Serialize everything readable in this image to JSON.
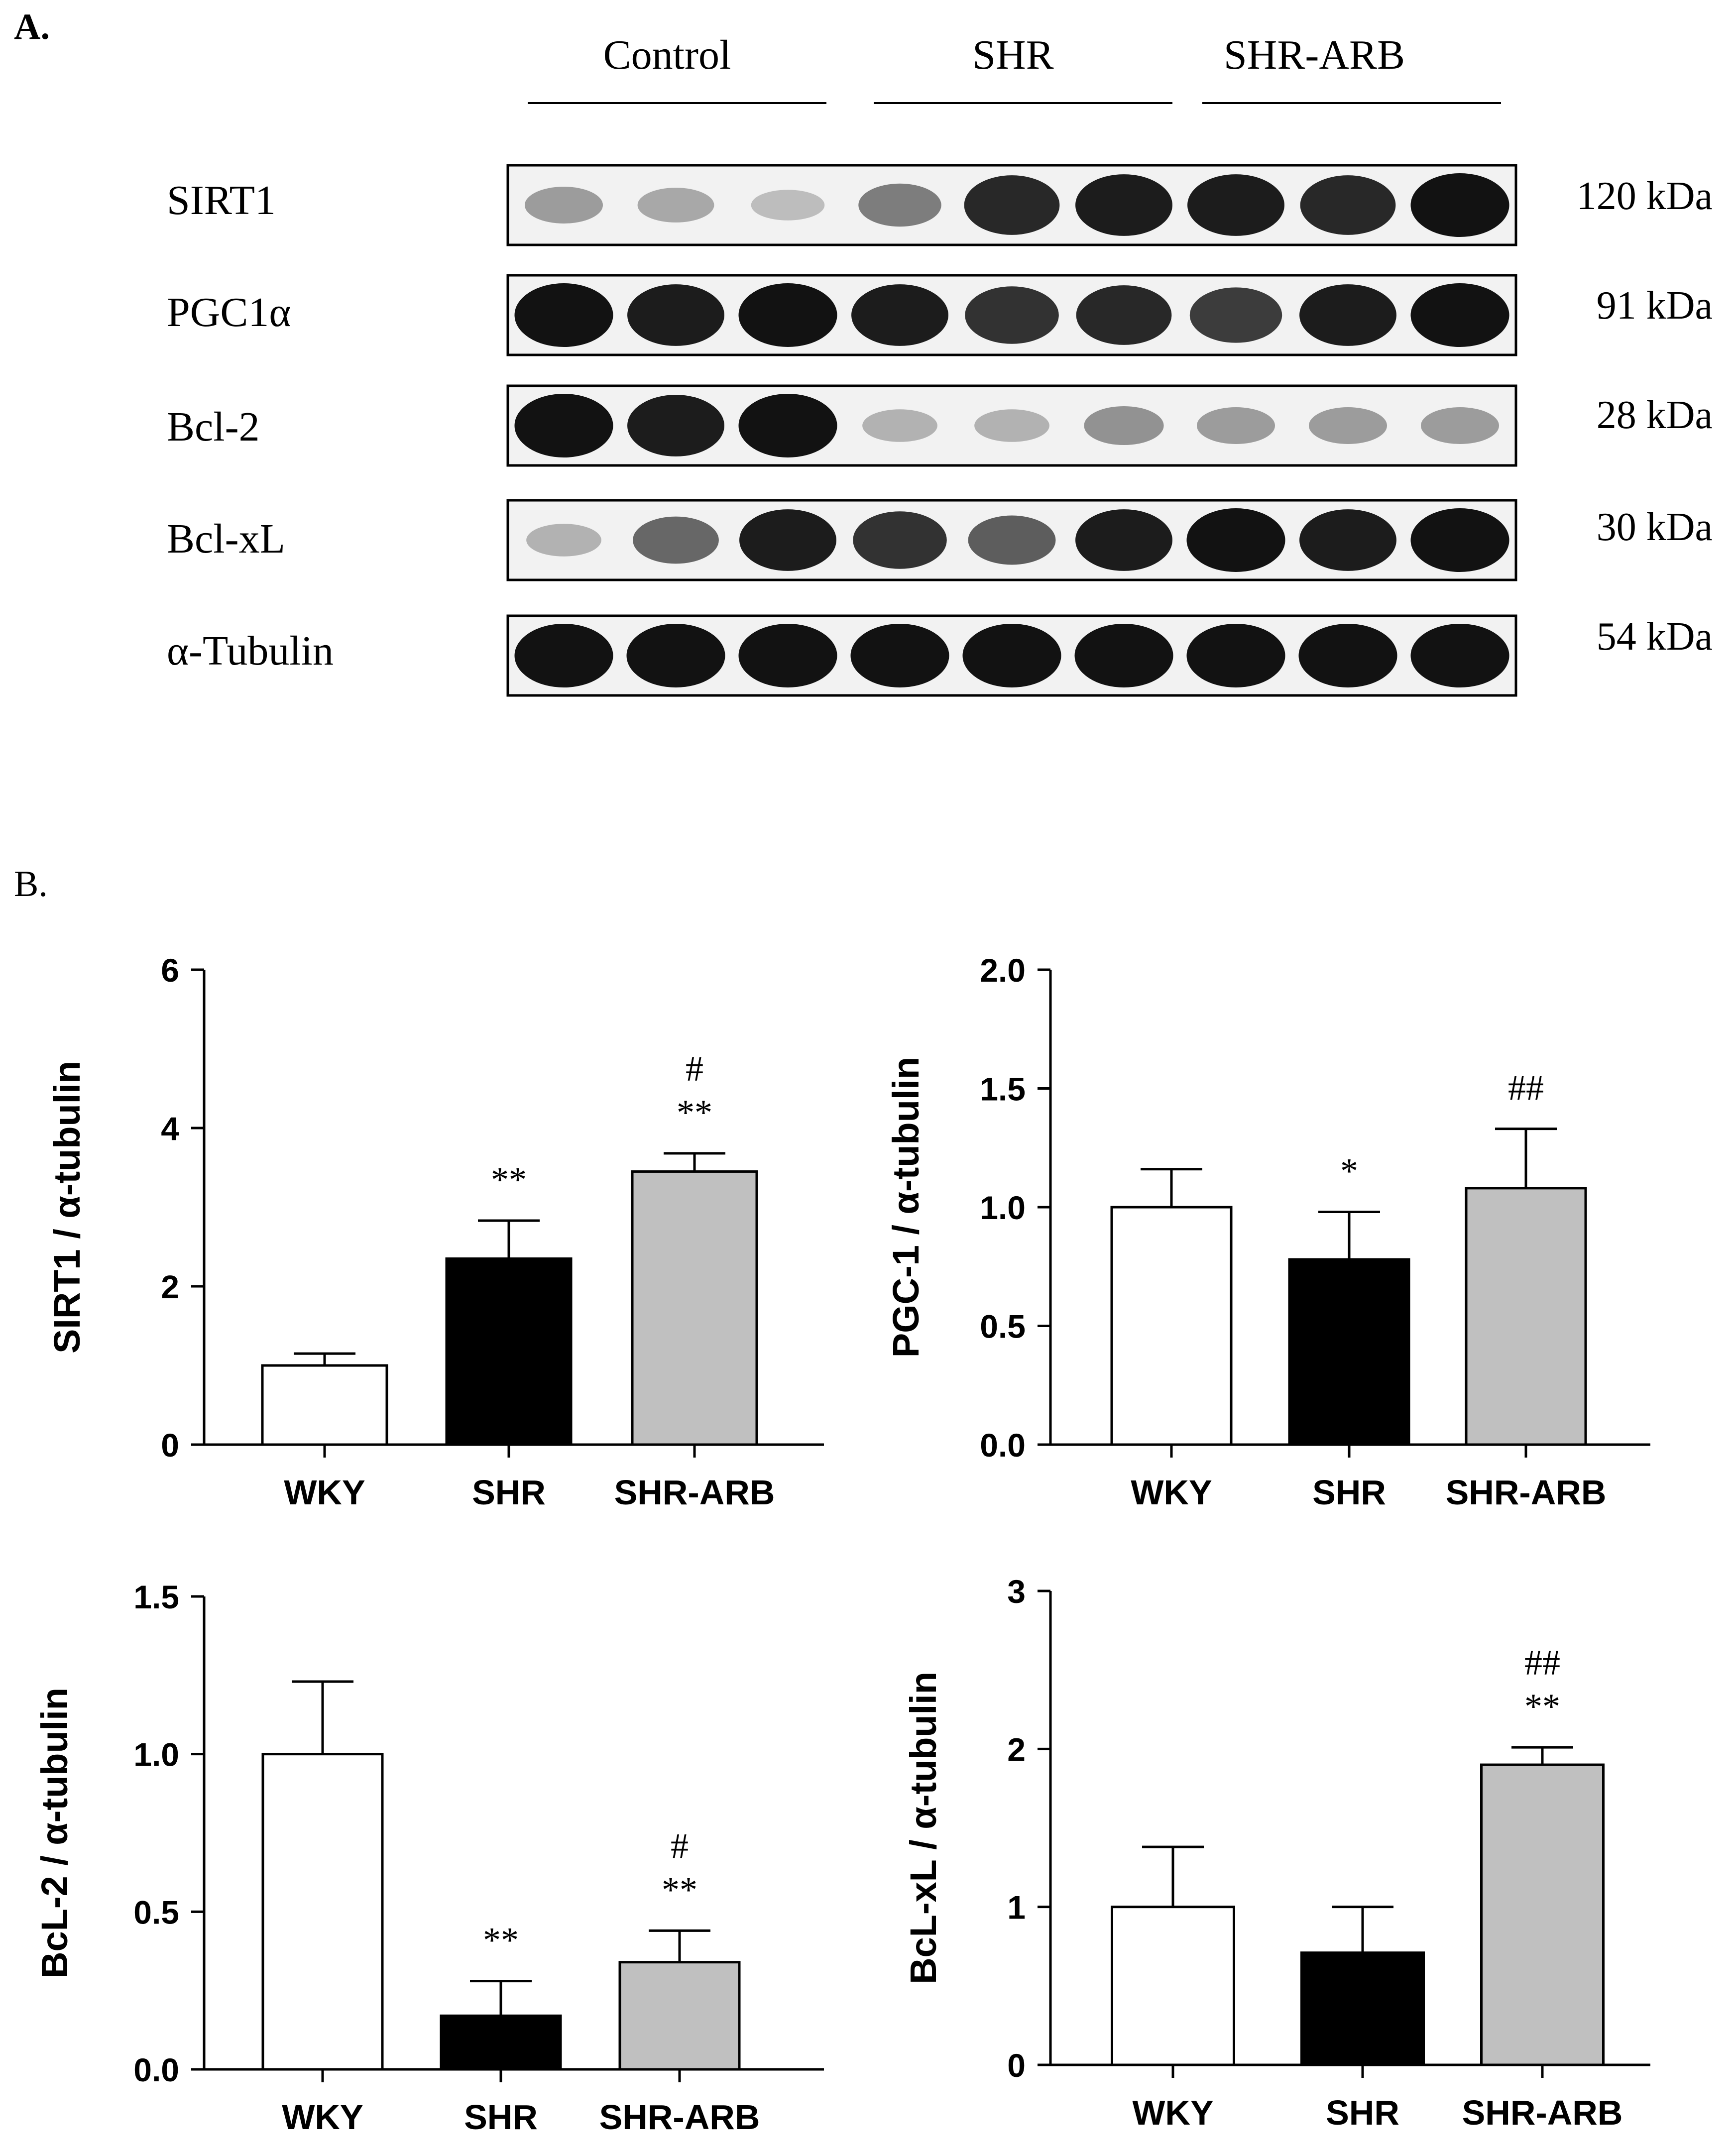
{
  "panel_a": {
    "label": "A.",
    "groups": [
      "Control",
      "SHR",
      "SHR-ARB"
    ],
    "blots": [
      {
        "protein": "SIRT1",
        "size": "120 kDa",
        "intensity": [
          0.35,
          0.3,
          0.2,
          0.5,
          0.9,
          0.95,
          0.95,
          0.9,
          1.0
        ]
      },
      {
        "protein": "PGC1α",
        "size": "91 kDa",
        "intensity": [
          1.0,
          0.95,
          1.0,
          0.95,
          0.85,
          0.9,
          0.8,
          0.95,
          1.0
        ]
      },
      {
        "protein": "Bcl-2",
        "size": "28 kDa",
        "intensity": [
          1.0,
          0.95,
          1.0,
          0.25,
          0.25,
          0.4,
          0.35,
          0.35,
          0.35
        ]
      },
      {
        "protein": "Bcl-xL",
        "size": "30 kDa",
        "intensity": [
          0.25,
          0.6,
          0.95,
          0.85,
          0.65,
          0.95,
          1.0,
          0.95,
          1.0
        ]
      },
      {
        "protein": "α-Tubulin",
        "size": "54 kDa",
        "intensity": [
          1.0,
          1.0,
          1.0,
          1.0,
          1.0,
          1.0,
          1.0,
          1.0,
          1.0
        ]
      }
    ]
  },
  "panel_b": {
    "label": "B."
  },
  "chart_data": [
    {
      "type": "bar",
      "categories": [
        "WKY",
        "SHR",
        "SHR-ARB"
      ],
      "values": [
        1.0,
        2.35,
        3.45
      ],
      "errors": [
        0.15,
        0.48,
        0.23
      ],
      "annotations": [
        [],
        [
          "**"
        ],
        [
          "#",
          "**"
        ]
      ],
      "fills": [
        "#ffffff",
        "#000000",
        "#c0c0c0"
      ],
      "ylabel": "SIRT1 / α-tubulin",
      "ylim": [
        0,
        6
      ],
      "yticks": [
        "0",
        "2",
        "4",
        "6"
      ],
      "ytick_values": [
        0,
        2,
        4,
        6
      ]
    },
    {
      "type": "bar",
      "categories": [
        "WKY",
        "SHR",
        "SHR-ARB"
      ],
      "values": [
        1.0,
        0.78,
        1.08
      ],
      "errors": [
        0.16,
        0.2,
        0.25
      ],
      "annotations": [
        [],
        [
          "*"
        ],
        [
          "##"
        ]
      ],
      "fills": [
        "#ffffff",
        "#000000",
        "#c0c0c0"
      ],
      "ylabel": "PGC-1 / α-tubulin",
      "ylim": [
        0,
        2
      ],
      "yticks": [
        "0.0",
        "0.5",
        "1.0",
        "1.5",
        "2.0"
      ],
      "ytick_values": [
        0,
        0.5,
        1,
        1.5,
        2
      ]
    },
    {
      "type": "bar",
      "categories": [
        "WKY",
        "SHR",
        "SHR-ARB"
      ],
      "values": [
        1.0,
        0.17,
        0.34
      ],
      "errors": [
        0.23,
        0.11,
        0.1
      ],
      "annotations": [
        [],
        [
          "**"
        ],
        [
          "#",
          "**"
        ]
      ],
      "fills": [
        "#ffffff",
        "#000000",
        "#c0c0c0"
      ],
      "ylabel": "BcL-2 / α-tubulin",
      "ylim": [
        0,
        1.5
      ],
      "yticks": [
        "0.0",
        "0.5",
        "1.0",
        "1.5"
      ],
      "ytick_values": [
        0,
        0.5,
        1,
        1.5
      ]
    },
    {
      "type": "bar",
      "categories": [
        "WKY",
        "SHR",
        "SHR-ARB"
      ],
      "values": [
        1.0,
        0.71,
        1.9
      ],
      "errors": [
        0.38,
        0.29,
        0.11
      ],
      "annotations": [
        [],
        [],
        [
          "##",
          "**"
        ]
      ],
      "fills": [
        "#ffffff",
        "#000000",
        "#c0c0c0"
      ],
      "ylabel": "BcL-xL / α-tubulin",
      "ylim": [
        0,
        3
      ],
      "yticks": [
        "0",
        "1",
        "2",
        "3"
      ],
      "ytick_values": [
        0,
        1,
        2,
        3
      ]
    }
  ]
}
